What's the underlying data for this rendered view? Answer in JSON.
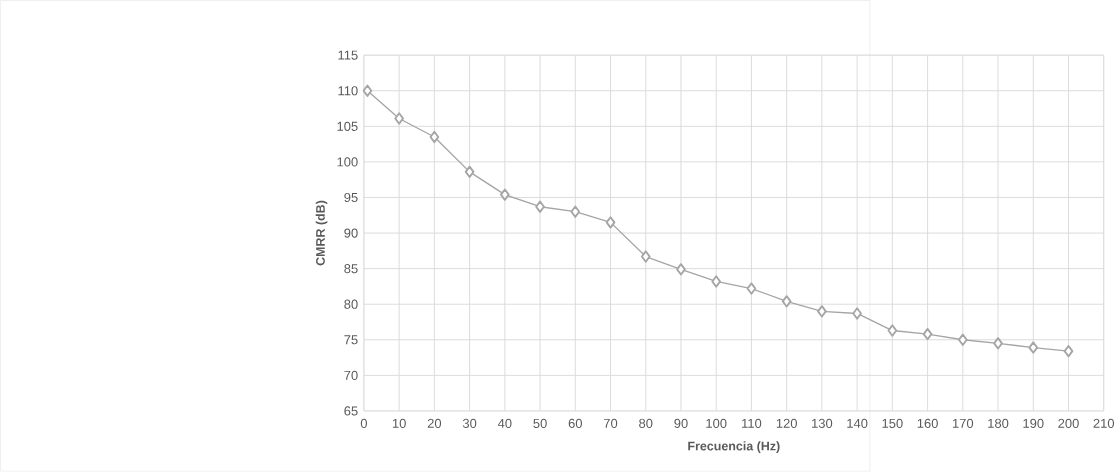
{
  "chart_data": {
    "type": "line",
    "xlabel": "Frecuencia (Hz)",
    "ylabel": "CMRR (dB)",
    "x": [
      1,
      10,
      20,
      30,
      40,
      50,
      60,
      70,
      80,
      90,
      100,
      110,
      120,
      130,
      140,
      150,
      160,
      170,
      180,
      190,
      200
    ],
    "values": [
      110,
      106.1,
      103.5,
      98.6,
      95.4,
      93.7,
      93.0,
      91.5,
      86.7,
      84.9,
      83.2,
      82.2,
      80.4,
      79.0,
      78.7,
      76.3,
      75.8,
      75.0,
      74.5,
      73.9,
      73.4
    ],
    "color": "#a5a5a5",
    "xlim": [
      0,
      210
    ],
    "ylim": [
      65,
      115
    ],
    "xticks": [
      0,
      10,
      20,
      30,
      40,
      50,
      60,
      70,
      80,
      90,
      100,
      110,
      120,
      130,
      140,
      150,
      160,
      170,
      180,
      190,
      200,
      210
    ],
    "yticks": [
      65,
      70,
      75,
      80,
      85,
      90,
      95,
      100,
      105,
      110,
      115
    ],
    "grid": true,
    "marker": "diamond",
    "line_style": "solid"
  }
}
